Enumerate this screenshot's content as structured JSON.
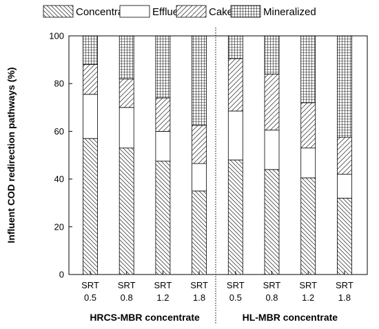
{
  "chart_data": {
    "type": "bar",
    "stacked": true,
    "ylabel": "Influent COD redirection pathways (%)",
    "ylim": [
      0,
      100
    ],
    "yticks": [
      0,
      20,
      40,
      60,
      80,
      100
    ],
    "legend": {
      "placement": "top",
      "entries": [
        {
          "name": "Concentrate",
          "pattern": "diag-down"
        },
        {
          "name": "Effluent",
          "pattern": "none"
        },
        {
          "name": "Cake",
          "pattern": "diag-up"
        },
        {
          "name": "Mineralized",
          "pattern": "grid"
        }
      ]
    },
    "categories": [
      {
        "line1": "SRT",
        "line2": "0.5"
      },
      {
        "line1": "SRT",
        "line2": "0.8"
      },
      {
        "line1": "SRT",
        "line2": "1.2"
      },
      {
        "line1": "SRT",
        "line2": "1.8"
      },
      {
        "line1": "SRT",
        "line2": "0.5"
      },
      {
        "line1": "SRT",
        "line2": "0.8"
      },
      {
        "line1": "SRT",
        "line2": "1.2"
      },
      {
        "line1": "SRT",
        "line2": "1.8"
      }
    ],
    "groups": [
      {
        "label": "HRCS-MBR concentrate",
        "categories": [
          0,
          1,
          2,
          3
        ]
      },
      {
        "label": "HL-MBR concentrate",
        "categories": [
          4,
          5,
          6,
          7
        ]
      }
    ],
    "series": [
      {
        "name": "Concentrate",
        "values": [
          57,
          53,
          47.5,
          35,
          48,
          44,
          40.5,
          32
        ]
      },
      {
        "name": "Effluent",
        "values": [
          18.5,
          17,
          12.5,
          11.5,
          20.5,
          16.5,
          12.5,
          10
        ]
      },
      {
        "name": "Cake",
        "values": [
          12.5,
          12,
          14,
          16,
          22,
          23.5,
          19,
          15.5
        ]
      },
      {
        "name": "Mineralized",
        "values": [
          12,
          18,
          26,
          37.5,
          9.5,
          16,
          28,
          42.5
        ]
      }
    ]
  }
}
